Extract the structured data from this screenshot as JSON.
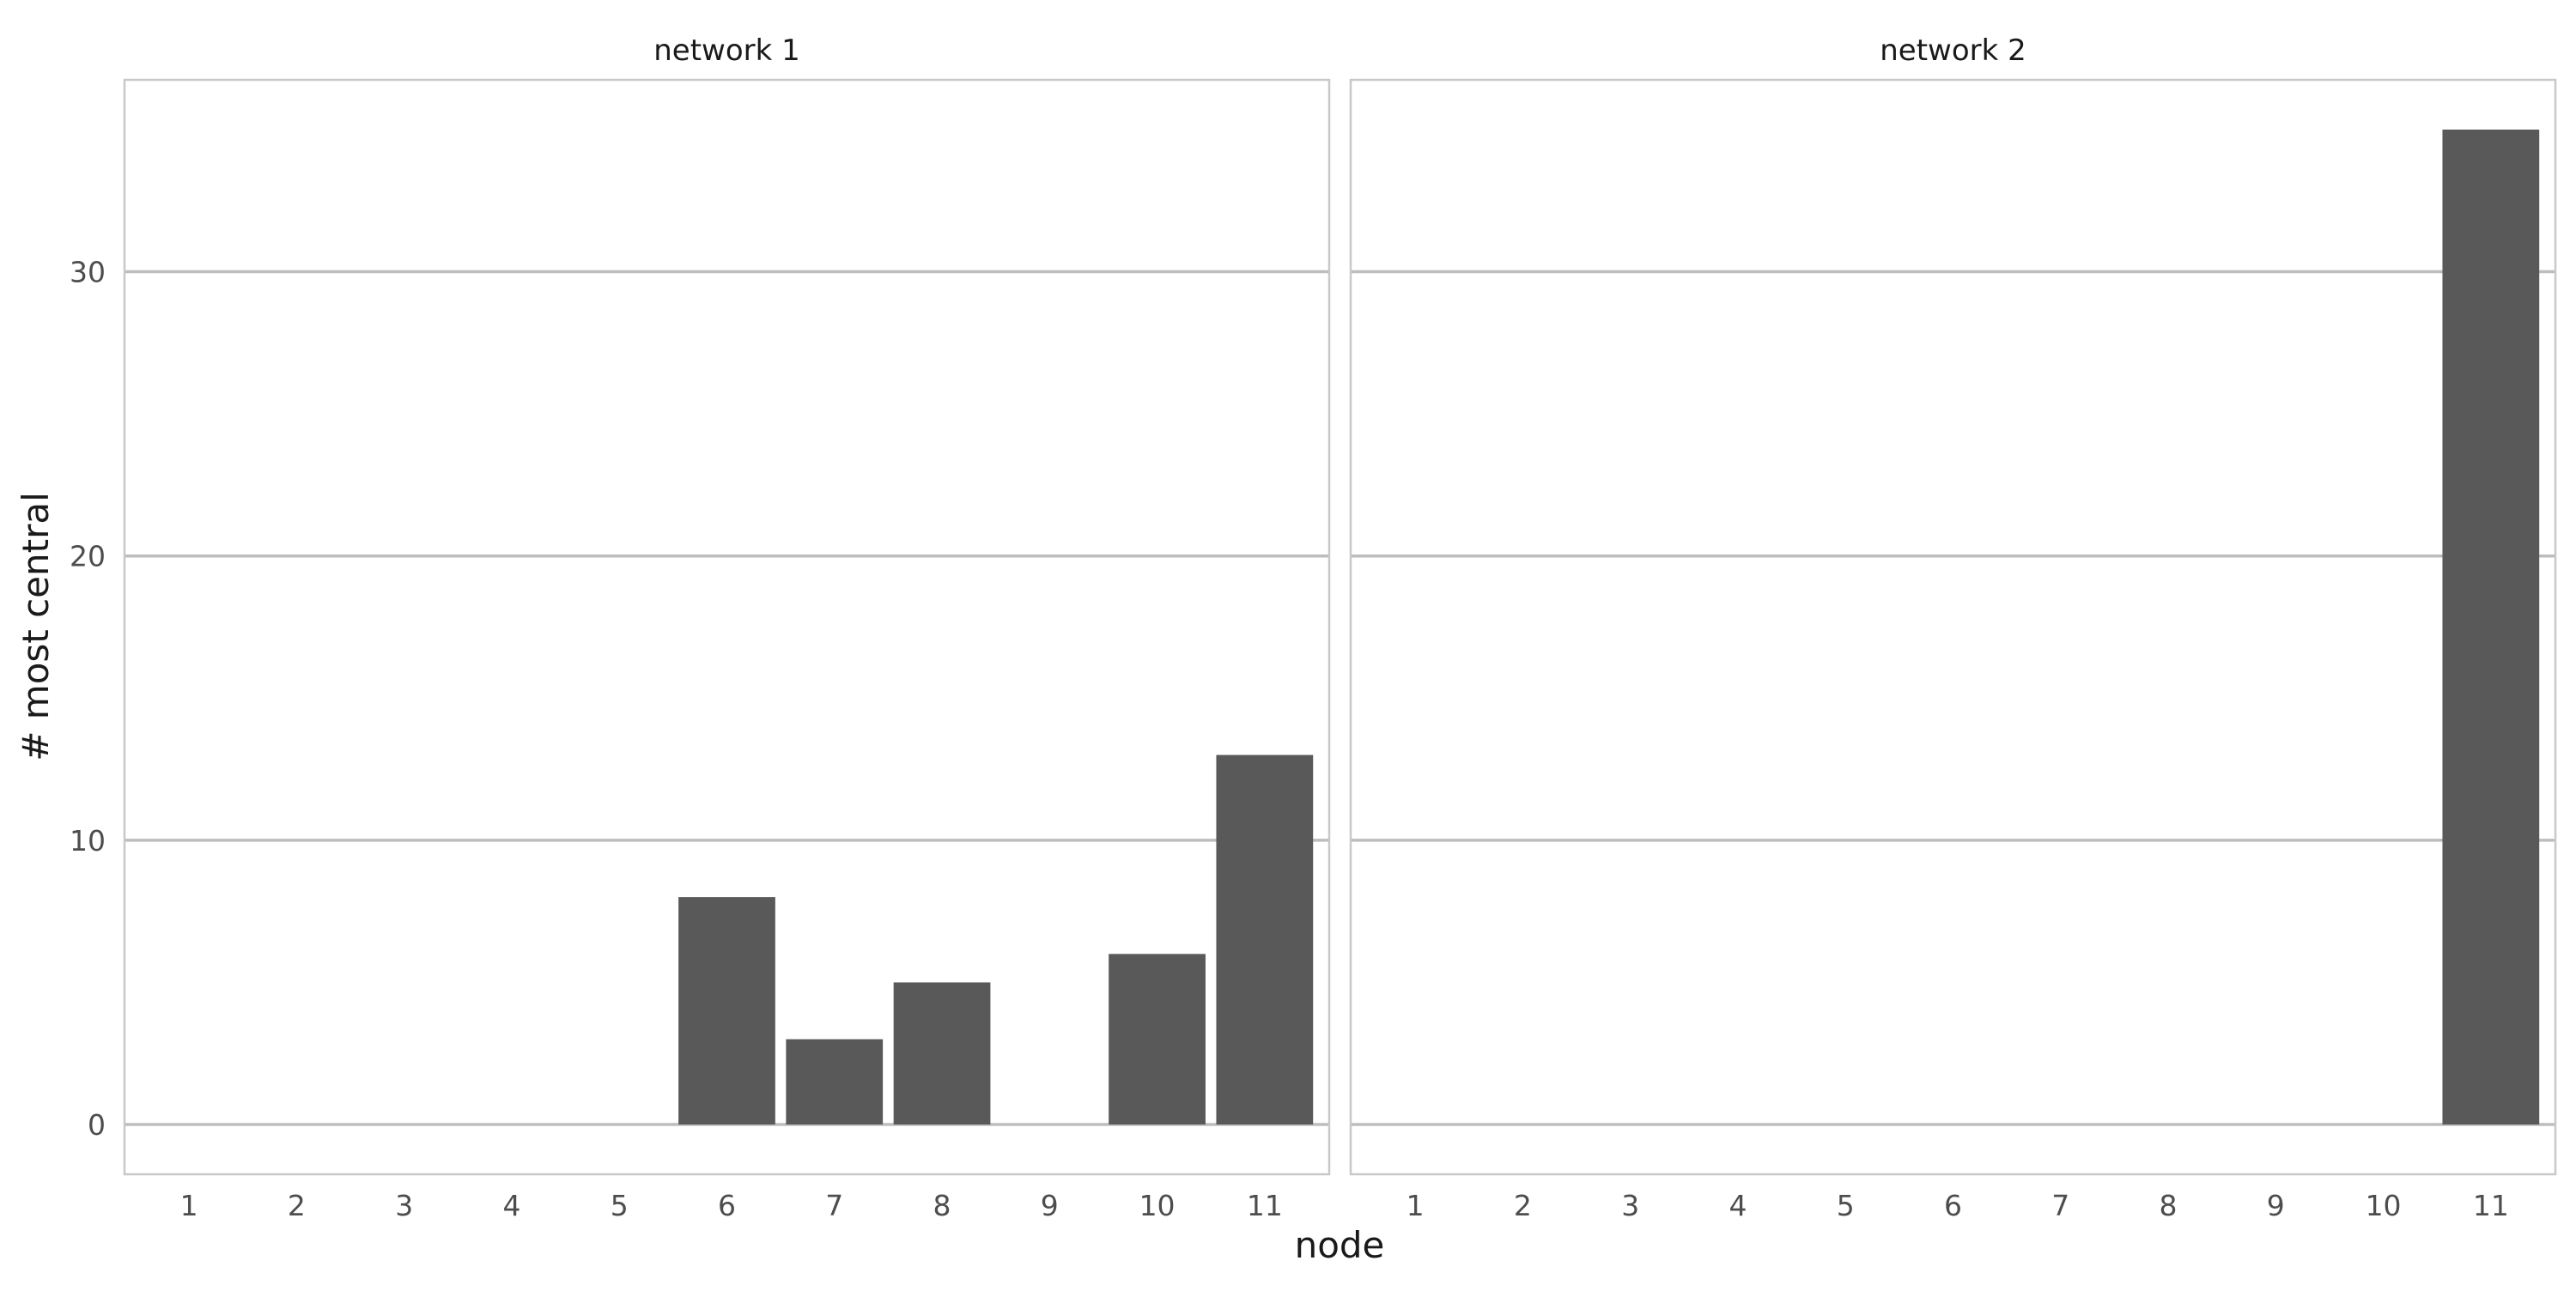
{
  "chart_data": {
    "type": "bar",
    "xlabel": "node",
    "ylabel": "# most central",
    "ylim": [
      -1.75,
      36.75
    ],
    "yticks": [
      0,
      10,
      20,
      30
    ],
    "grid": true,
    "categories": [
      "1",
      "2",
      "3",
      "4",
      "5",
      "6",
      "7",
      "8",
      "9",
      "10",
      "11"
    ],
    "series_color": "#595959",
    "panels": [
      {
        "title": "network 1",
        "values": [
          0,
          0,
          0,
          0,
          0,
          8,
          3,
          5,
          0,
          6,
          13
        ]
      },
      {
        "title": "network 2",
        "values": [
          0,
          0,
          0,
          0,
          0,
          0,
          0,
          0,
          0,
          0,
          35
        ]
      }
    ]
  }
}
